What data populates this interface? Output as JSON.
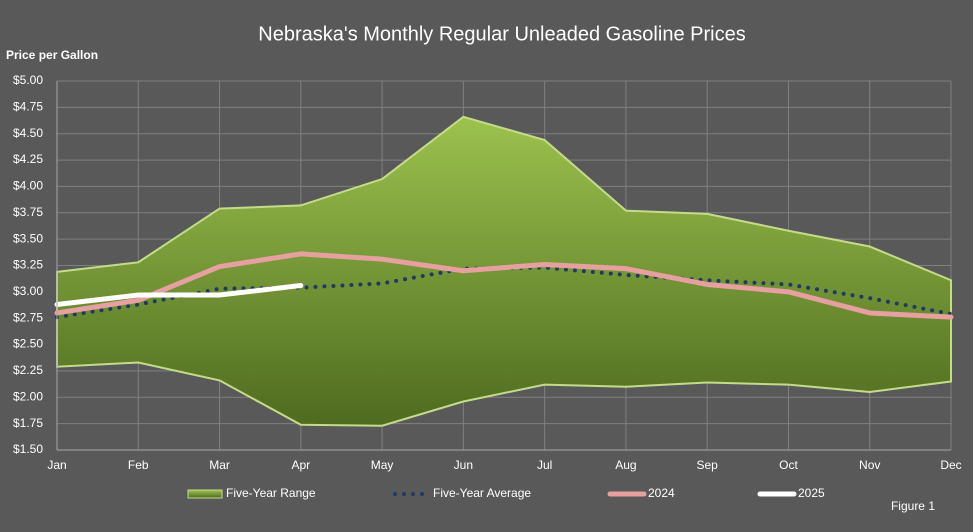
{
  "chart_data": {
    "type": "line",
    "title": "Nebraska's Monthly Regular Unleaded Gasoline Prices",
    "y_label": "Price per Gallon",
    "annotation": "Figure 1",
    "categories": [
      "Jan",
      "Feb",
      "Mar",
      "Apr",
      "May",
      "Jun",
      "Jul",
      "Aug",
      "Sep",
      "Oct",
      "Nov",
      "Dec"
    ],
    "ylim": [
      1.5,
      5.0
    ],
    "yticks": [
      {
        "value": 1.5,
        "label": "$1.50"
      },
      {
        "value": 1.75,
        "label": "$1.75"
      },
      {
        "value": 2.0,
        "label": "$2.00"
      },
      {
        "value": 2.25,
        "label": "$2.25"
      },
      {
        "value": 2.5,
        "label": "$2.50"
      },
      {
        "value": 2.75,
        "label": "$2.75"
      },
      {
        "value": 3.0,
        "label": "$3.00"
      },
      {
        "value": 3.25,
        "label": "$3.25"
      },
      {
        "value": 3.5,
        "label": "$3.50"
      },
      {
        "value": 3.75,
        "label": "$3.75"
      },
      {
        "value": 4.0,
        "label": "$4.00"
      },
      {
        "value": 4.25,
        "label": "$4.25"
      },
      {
        "value": 4.5,
        "label": "$4.50"
      },
      {
        "value": 4.75,
        "label": "$4.75"
      },
      {
        "value": 5.0,
        "label": "$5.00"
      }
    ],
    "grid": true,
    "legend": "bottom",
    "series": [
      {
        "name": "Five-Year Range",
        "kind": "range",
        "color": "#8cb043",
        "values": [
          3.19,
          3.28,
          3.79,
          3.82,
          4.07,
          4.66,
          4.44,
          3.77,
          3.74,
          3.58,
          3.43,
          3.11
        ],
        "low": [
          2.29,
          2.33,
          2.16,
          1.74,
          1.73,
          1.96,
          2.12,
          2.1,
          2.14,
          2.12,
          2.05,
          2.15
        ]
      },
      {
        "name": "Five-Year Average",
        "kind": "dotted",
        "color": "#1f3864",
        "values": [
          2.76,
          2.88,
          3.03,
          3.04,
          3.08,
          3.22,
          3.23,
          3.16,
          3.11,
          3.07,
          2.94,
          2.79
        ]
      },
      {
        "name": "2024",
        "kind": "solid",
        "color": "#e6a0a0",
        "values": [
          2.8,
          2.92,
          3.24,
          3.36,
          3.31,
          3.2,
          3.26,
          3.22,
          3.07,
          3.0,
          2.8,
          2.76
        ]
      },
      {
        "name": "2025",
        "kind": "solid",
        "color": "#ffffff",
        "values": [
          2.88,
          2.97,
          2.97,
          3.06,
          null,
          null,
          null,
          null,
          null,
          null,
          null,
          null
        ]
      }
    ]
  }
}
